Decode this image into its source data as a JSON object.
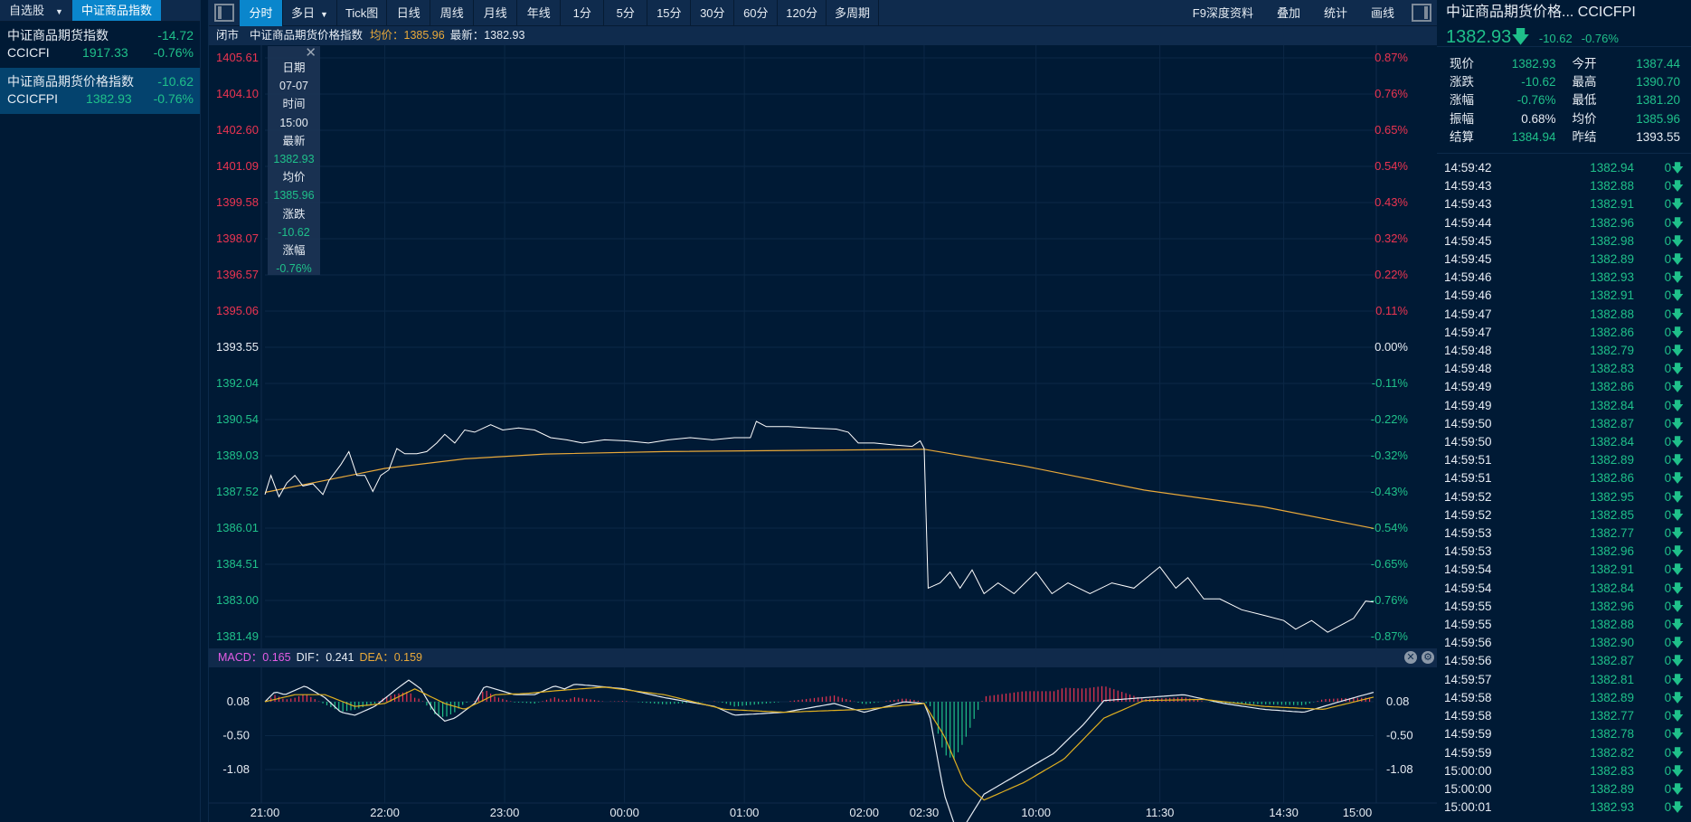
{
  "left_panel": {
    "tabs": [
      {
        "label": "自选股"
      },
      {
        "label": "中证商品指数"
      }
    ],
    "items": [
      {
        "name": "中证商品期货指数",
        "code": "CCICFI",
        "price": "1917.33",
        "change": "-14.72",
        "pct": "-0.76%"
      },
      {
        "name": "中证商品期货价格指数",
        "code": "CCICFPI",
        "price": "1382.93",
        "change": "-10.62",
        "pct": "-0.76%"
      }
    ]
  },
  "toolbar": {
    "buttons": [
      "分时",
      "多日",
      "Tick图",
      "日线",
      "周线",
      "月线",
      "年线",
      "1分",
      "5分",
      "15分",
      "30分",
      "60分",
      "120分",
      "多周期"
    ],
    "right_buttons": [
      "F9深度资料",
      "叠加",
      "统计",
      "画线"
    ]
  },
  "info_bar": {
    "status": "闭市",
    "name": "中证商品期货价格指数",
    "avg": "均价：1385.96",
    "latest": "最新：1382.93"
  },
  "tooltip": {
    "labels": [
      "日期",
      "07-07",
      "时间",
      "15:00",
      "最新",
      "1382.93",
      "均价",
      "1385.96",
      "涨跌",
      "-10.62",
      "涨幅",
      "-0.76%"
    ]
  },
  "macd_header": {
    "macd": "MACD：0.165",
    "dif": "DIF：0.241",
    "dea": "DEA：0.159"
  },
  "colors": {
    "up": "#ec3451",
    "down": "#1fc08a",
    "flat": "#e6ecf3",
    "price_line": "#ffffff",
    "avg_line": "#e9a93a",
    "accent": "#0a86cc"
  },
  "chart_data": {
    "type": "line",
    "title": "中证商品期货价格指数 分时",
    "prev_settle": 1393.55,
    "ylim": [
      1381.49,
      1405.61
    ],
    "y_ticks_left": [
      "1405.61",
      "1404.10",
      "1402.60",
      "1401.09",
      "1399.58",
      "1398.07",
      "1396.57",
      "1395.06",
      "1393.55",
      "1392.04",
      "1390.54",
      "1389.03",
      "1387.52",
      "1386.01",
      "1384.51",
      "1383.00",
      "1381.49"
    ],
    "y_ticks_right": [
      "0.87%",
      "0.76%",
      "0.65%",
      "0.54%",
      "0.43%",
      "0.32%",
      "0.22%",
      "0.11%",
      "0.00%",
      "-0.11%",
      "-0.22%",
      "-0.32%",
      "-0.43%",
      "-0.54%",
      "-0.65%",
      "-0.76%",
      "-0.87%"
    ],
    "x_total_minutes": 555,
    "x_ticks": [
      {
        "label": "21:00",
        "m": 0
      },
      {
        "label": "22:00",
        "m": 60
      },
      {
        "label": "23:00",
        "m": 120
      },
      {
        "label": "00:00",
        "m": 180
      },
      {
        "label": "01:00",
        "m": 240
      },
      {
        "label": "02:00",
        "m": 300
      },
      {
        "label": "02:30",
        "m": 330
      },
      {
        "label": "10:00",
        "m": 386
      },
      {
        "label": "11:30",
        "m": 448
      },
      {
        "label": "14:30",
        "m": 510
      },
      {
        "label": "15:00",
        "m": 555
      }
    ],
    "series": [
      {
        "name": "price",
        "points": [
          [
            0,
            1387.41
          ],
          [
            3,
            1388.21
          ],
          [
            7,
            1387.32
          ],
          [
            11,
            1387.9
          ],
          [
            15,
            1388.21
          ],
          [
            19,
            1387.77
          ],
          [
            24,
            1387.86
          ],
          [
            29,
            1387.41
          ],
          [
            32,
            1387.99
          ],
          [
            38,
            1388.66
          ],
          [
            42,
            1389.2
          ],
          [
            46,
            1388.21
          ],
          [
            50,
            1388.21
          ],
          [
            54,
            1387.54
          ],
          [
            58,
            1388.21
          ],
          [
            62,
            1388.44
          ],
          [
            66,
            1389.33
          ],
          [
            70,
            1389.11
          ],
          [
            76,
            1389.11
          ],
          [
            81,
            1389.2
          ],
          [
            86,
            1389.56
          ],
          [
            90,
            1389.92
          ],
          [
            95,
            1389.56
          ],
          [
            100,
            1390.1
          ],
          [
            105,
            1390.01
          ],
          [
            113,
            1390.32
          ],
          [
            119,
            1390.1
          ],
          [
            127,
            1390.19
          ],
          [
            135,
            1390.1
          ],
          [
            143,
            1389.78
          ],
          [
            151,
            1389.69
          ],
          [
            159,
            1389.56
          ],
          [
            170,
            1389.69
          ],
          [
            181,
            1389.65
          ],
          [
            192,
            1389.56
          ],
          [
            202,
            1389.69
          ],
          [
            213,
            1389.78
          ],
          [
            224,
            1389.69
          ],
          [
            235,
            1389.78
          ],
          [
            243,
            1389.78
          ],
          [
            246,
            1390.46
          ],
          [
            251,
            1390.24
          ],
          [
            262,
            1390.24
          ],
          [
            273,
            1390.19
          ],
          [
            286,
            1390.14
          ],
          [
            292,
            1390.01
          ],
          [
            297,
            1389.56
          ],
          [
            305,
            1389.56
          ],
          [
            316,
            1389.47
          ],
          [
            324,
            1389.42
          ],
          [
            328,
            1389.65
          ],
          [
            330,
            1389.33
          ],
          [
            332,
            1383.51
          ],
          [
            338,
            1383.73
          ],
          [
            343,
            1384.18
          ],
          [
            348,
            1383.51
          ],
          [
            354,
            1384.27
          ],
          [
            360,
            1383.28
          ],
          [
            367,
            1383.73
          ],
          [
            375,
            1383.28
          ],
          [
            386,
            1384.18
          ],
          [
            394,
            1383.28
          ],
          [
            402,
            1383.73
          ],
          [
            413,
            1383.28
          ],
          [
            424,
            1383.73
          ],
          [
            435,
            1383.51
          ],
          [
            448,
            1384.4
          ],
          [
            456,
            1383.51
          ],
          [
            462,
            1383.95
          ],
          [
            470,
            1383.06
          ],
          [
            478,
            1383.06
          ],
          [
            489,
            1382.61
          ],
          [
            500,
            1382.38
          ],
          [
            510,
            1382.16
          ],
          [
            516,
            1381.8
          ],
          [
            524,
            1382.16
          ],
          [
            532,
            1381.67
          ],
          [
            540,
            1382.03
          ],
          [
            545,
            1382.25
          ],
          [
            551,
            1382.97
          ],
          [
            555,
            1382.93
          ]
        ]
      },
      {
        "name": "avg",
        "points": [
          [
            0,
            1387.5
          ],
          [
            30,
            1388.0
          ],
          [
            60,
            1388.5
          ],
          [
            100,
            1388.9
          ],
          [
            140,
            1389.1
          ],
          [
            200,
            1389.2
          ],
          [
            330,
            1389.3
          ],
          [
            380,
            1388.6
          ],
          [
            440,
            1387.6
          ],
          [
            500,
            1386.9
          ],
          [
            555,
            1386.0
          ]
        ]
      }
    ],
    "macd": {
      "y_ticks": [
        "0.08",
        "-0.50",
        "-1.08"
      ],
      "dif": [
        [
          0,
          0.08
        ],
        [
          5,
          0.25
        ],
        [
          10,
          0.2
        ],
        [
          20,
          0.35
        ],
        [
          30,
          0.15
        ],
        [
          38,
          -0.1
        ],
        [
          45,
          -0.15
        ],
        [
          55,
          0.0
        ],
        [
          66,
          0.3
        ],
        [
          72,
          0.45
        ],
        [
          78,
          0.3
        ],
        [
          85,
          -0.1
        ],
        [
          90,
          -0.25
        ],
        [
          95,
          -0.2
        ],
        [
          105,
          0.05
        ],
        [
          110,
          0.35
        ],
        [
          115,
          0.3
        ],
        [
          125,
          0.2
        ],
        [
          135,
          0.2
        ],
        [
          145,
          0.35
        ],
        [
          150,
          0.3
        ],
        [
          155,
          0.38
        ],
        [
          165,
          0.35
        ],
        [
          180,
          0.3
        ],
        [
          200,
          0.15
        ],
        [
          225,
          0.0
        ],
        [
          235,
          -0.15
        ],
        [
          260,
          -0.1
        ],
        [
          285,
          0.05
        ],
        [
          300,
          -0.1
        ],
        [
          320,
          0.08
        ],
        [
          330,
          0.05
        ],
        [
          333,
          -0.2
        ],
        [
          340,
          -1.5
        ],
        [
          345,
          -2.0
        ],
        [
          350,
          -2.05
        ],
        [
          360,
          -1.5
        ],
        [
          375,
          -1.2
        ],
        [
          395,
          -0.8
        ],
        [
          410,
          -0.3
        ],
        [
          420,
          0.1
        ],
        [
          440,
          0.15
        ],
        [
          460,
          0.2
        ],
        [
          480,
          0.05
        ],
        [
          500,
          -0.05
        ],
        [
          520,
          -0.1
        ],
        [
          540,
          0.1
        ],
        [
          555,
          0.241
        ]
      ],
      "dea": [
        [
          0,
          0.08
        ],
        [
          15,
          0.2
        ],
        [
          30,
          0.2
        ],
        [
          45,
          0.0
        ],
        [
          60,
          0.05
        ],
        [
          75,
          0.3
        ],
        [
          90,
          0.05
        ],
        [
          100,
          -0.05
        ],
        [
          115,
          0.2
        ],
        [
          130,
          0.22
        ],
        [
          150,
          0.28
        ],
        [
          170,
          0.33
        ],
        [
          200,
          0.2
        ],
        [
          230,
          -0.05
        ],
        [
          260,
          -0.1
        ],
        [
          300,
          -0.05
        ],
        [
          330,
          0.05
        ],
        [
          340,
          -0.5
        ],
        [
          350,
          -1.3
        ],
        [
          360,
          -1.6
        ],
        [
          380,
          -1.3
        ],
        [
          400,
          -0.9
        ],
        [
          420,
          -0.2
        ],
        [
          440,
          0.1
        ],
        [
          470,
          0.12
        ],
        [
          500,
          0.0
        ],
        [
          530,
          -0.05
        ],
        [
          555,
          0.159
        ]
      ]
    }
  },
  "right_panel": {
    "title": "中证商品期货价格...  CCICFPI",
    "price": "1382.93",
    "change": "-10.62",
    "pct": "-0.76%",
    "stats": [
      {
        "l": "现价",
        "v": "1382.93",
        "c": "down",
        "l2": "今开",
        "v2": "1387.44",
        "c2": "down"
      },
      {
        "l": "涨跌",
        "v": "-10.62",
        "c": "down",
        "l2": "最高",
        "v2": "1390.70",
        "c2": "down"
      },
      {
        "l": "涨幅",
        "v": "-0.76%",
        "c": "down",
        "l2": "最低",
        "v2": "1381.20",
        "c2": "down"
      },
      {
        "l": "振幅",
        "v": "0.68%",
        "c": "flat",
        "l2": "均价",
        "v2": "1385.96",
        "c2": "down"
      },
      {
        "l": "结算",
        "v": "1384.94",
        "c": "down",
        "l2": "昨结",
        "v2": "1393.55",
        "c2": "flat"
      }
    ],
    "ticks": [
      [
        "14:59:42",
        "1382.94"
      ],
      [
        "14:59:43",
        "1382.88"
      ],
      [
        "14:59:43",
        "1382.91"
      ],
      [
        "14:59:44",
        "1382.96"
      ],
      [
        "14:59:45",
        "1382.98"
      ],
      [
        "14:59:45",
        "1382.89"
      ],
      [
        "14:59:46",
        "1382.93"
      ],
      [
        "14:59:46",
        "1382.91"
      ],
      [
        "14:59:47",
        "1382.88"
      ],
      [
        "14:59:47",
        "1382.86"
      ],
      [
        "14:59:48",
        "1382.79"
      ],
      [
        "14:59:48",
        "1382.83"
      ],
      [
        "14:59:49",
        "1382.86"
      ],
      [
        "14:59:49",
        "1382.84"
      ],
      [
        "14:59:50",
        "1382.87"
      ],
      [
        "14:59:50",
        "1382.84"
      ],
      [
        "14:59:51",
        "1382.89"
      ],
      [
        "14:59:51",
        "1382.86"
      ],
      [
        "14:59:52",
        "1382.95"
      ],
      [
        "14:59:52",
        "1382.85"
      ],
      [
        "14:59:53",
        "1382.77"
      ],
      [
        "14:59:53",
        "1382.96"
      ],
      [
        "14:59:54",
        "1382.91"
      ],
      [
        "14:59:54",
        "1382.84"
      ],
      [
        "14:59:55",
        "1382.96"
      ],
      [
        "14:59:55",
        "1382.88"
      ],
      [
        "14:59:56",
        "1382.90"
      ],
      [
        "14:59:56",
        "1382.87"
      ],
      [
        "14:59:57",
        "1382.81"
      ],
      [
        "14:59:58",
        "1382.89"
      ],
      [
        "14:59:58",
        "1382.77"
      ],
      [
        "14:59:59",
        "1382.78"
      ],
      [
        "14:59:59",
        "1382.82"
      ],
      [
        "15:00:00",
        "1382.83"
      ],
      [
        "15:00:00",
        "1382.89"
      ],
      [
        "15:00:01",
        "1382.93"
      ]
    ],
    "tick_volume": "0"
  }
}
